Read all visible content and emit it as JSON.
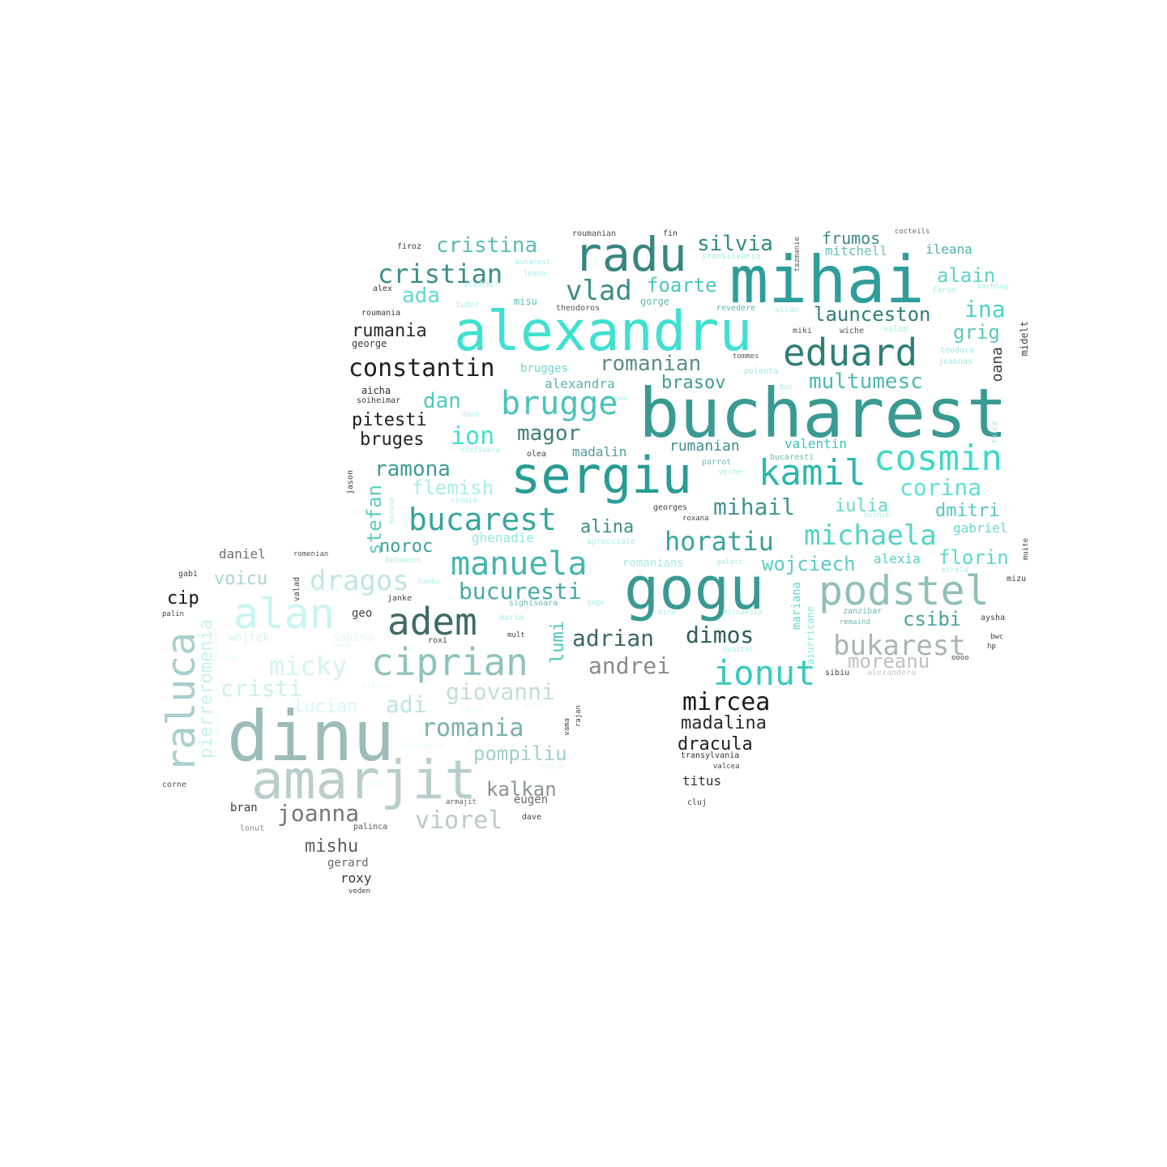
{
  "words": [
    {
      "text": "bucharest",
      "color": "#3a9a92"
    },
    {
      "text": "mihai",
      "color": "#2f9d9a"
    },
    {
      "text": "alexandru",
      "color": "#40e0d0"
    },
    {
      "text": "sergiu",
      "color": "#2a9c96"
    },
    {
      "text": "gogu",
      "color": "#3a9a92"
    },
    {
      "text": "dinu",
      "color": "#9dbcb9"
    },
    {
      "text": "amarjit",
      "color": "#b9cdcb"
    },
    {
      "text": "radu",
      "color": "#37867f"
    },
    {
      "text": "alan",
      "color": "#c8f5f1"
    },
    {
      "text": "adem",
      "color": "#3f6b68"
    },
    {
      "text": "ciprian",
      "color": "#8fc3bd"
    },
    {
      "text": "podstel",
      "color": "#8fbfb9"
    },
    {
      "text": "eduard",
      "color": "#2f7e78"
    },
    {
      "text": "kamil",
      "color": "#2fb7ad"
    },
    {
      "text": "cosmin",
      "color": "#40d9c9"
    },
    {
      "text": "ionut",
      "color": "#3ac8be"
    },
    {
      "text": "manuela",
      "color": "#45b5ad"
    },
    {
      "text": "brugge",
      "color": "#4cc3ba"
    },
    {
      "text": "bucarest",
      "color": "#37a59c"
    },
    {
      "text": "raluca",
      "color": "#a8cfcb"
    },
    {
      "text": "michaela",
      "color": "#55d2c6"
    },
    {
      "text": "constantin",
      "color": "#1f1f1f"
    },
    {
      "text": "cristian",
      "color": "#3b8f8a"
    },
    {
      "text": "horatiu",
      "color": "#3aa39a"
    },
    {
      "text": "vlad",
      "color": "#3b8e87"
    },
    {
      "text": "bukarest",
      "color": "#a9b4b3"
    },
    {
      "text": "mircea",
      "color": "#1a1a1a"
    },
    {
      "text": "dragos",
      "color": "#bfe6e1"
    },
    {
      "text": "micky",
      "color": "#d3f3f0"
    },
    {
      "text": "romania",
      "color": "#7bb0aa"
    },
    {
      "text": "cristina",
      "color": "#58bdb3"
    },
    {
      "text": "silvia",
      "color": "#2f8a84"
    },
    {
      "text": "multumesc",
      "color": "#4db9af"
    },
    {
      "text": "romanian",
      "color": "#5b8d88"
    },
    {
      "text": "launceston",
      "color": "#2f7e78"
    },
    {
      "text": "viorel",
      "color": "#bdc9c8"
    },
    {
      "text": "giovanni",
      "color": "#c3dcd8"
    },
    {
      "text": "andrei",
      "color": "#8a8a8a"
    },
    {
      "text": "cristi",
      "color": "#ccf0ec"
    },
    {
      "text": "joanna",
      "color": "#777777"
    },
    {
      "text": "bucuresti",
      "color": "#46aaa2"
    },
    {
      "text": "adrian",
      "color": "#3d6663"
    },
    {
      "text": "dimos",
      "color": "#2e5e5a"
    },
    {
      "text": "moreanu",
      "color": "#c0c0c0"
    },
    {
      "text": "ramona",
      "color": "#3a9e96"
    },
    {
      "text": "corina",
      "color": "#5fe0d2"
    },
    {
      "text": "mihail",
      "color": "#41958e"
    },
    {
      "text": "wojciech",
      "color": "#58cdc2"
    },
    {
      "text": "florin",
      "color": "#5dd7ca"
    },
    {
      "text": "pompiliu",
      "color": "#a0cec8"
    },
    {
      "text": "kalkan",
      "color": "#8a9391"
    },
    {
      "text": "madalina",
      "color": "#2b2b2b"
    },
    {
      "text": "dracula",
      "color": "#202020"
    },
    {
      "text": "flemish",
      "color": "#a8efe7"
    },
    {
      "text": "foarte",
      "color": "#4cc6ba"
    },
    {
      "text": "ada",
      "color": "#5bdccf"
    },
    {
      "text": "ina",
      "color": "#4dd1c4"
    },
    {
      "text": "alain",
      "color": "#5ed3c7"
    },
    {
      "text": "grig",
      "color": "#59c7bc"
    },
    {
      "text": "dmitri",
      "color": "#53c8bd"
    },
    {
      "text": "iulia",
      "color": "#67d6ca"
    },
    {
      "text": "csibi",
      "color": "#49a39c"
    },
    {
      "text": "ion",
      "color": "#40e0d0"
    },
    {
      "text": "magor",
      "color": "#3f7d78"
    },
    {
      "text": "dan",
      "color": "#4fcabe"
    },
    {
      "text": "pitesti",
      "color": "#1d1d1d"
    },
    {
      "text": "bruges",
      "color": "#252525"
    },
    {
      "text": "rumania",
      "color": "#2a2a2a"
    },
    {
      "text": "brasov",
      "color": "#3d9c95"
    },
    {
      "text": "alina",
      "color": "#3d8e88"
    },
    {
      "text": "noroc",
      "color": "#3da199"
    },
    {
      "text": "voicu",
      "color": "#a9d5d0"
    },
    {
      "text": "adi",
      "color": "#bde5e0"
    },
    {
      "text": "lucian",
      "color": "#d4f7f3"
    },
    {
      "text": "stefan",
      "color": "#5ecbc0"
    },
    {
      "text": "lumi",
      "color": "#4cc7bb"
    },
    {
      "text": "frumos",
      "color": "#3c8983"
    },
    {
      "text": "mitchell",
      "color": "#6bbdb5"
    },
    {
      "text": "ileana",
      "color": "#4fb2a9"
    },
    {
      "text": "valentin",
      "color": "#40c2b7"
    },
    {
      "text": "rumanian",
      "color": "#3b918a"
    },
    {
      "text": "madalin",
      "color": "#4c9c95"
    },
    {
      "text": "alexandra",
      "color": "#5bb5ac"
    },
    {
      "text": "gabriel",
      "color": "#6ad9cd"
    },
    {
      "text": "alexia",
      "color": "#54cfc3"
    },
    {
      "text": "ghenadie",
      "color": "#8fe9df"
    },
    {
      "text": "mishu",
      "color": "#5e5e5e"
    },
    {
      "text": "pierreromenia",
      "color": "#c6f1ec"
    },
    {
      "text": "daniel",
      "color": "#6f6f6f"
    },
    {
      "text": "cip",
      "color": "#151515"
    },
    {
      "text": "titus",
      "color": "#303030"
    },
    {
      "text": "oana",
      "color": "#3a3a3a"
    },
    {
      "text": "eugen",
      "color": "#6a6a6a"
    },
    {
      "text": "gerard",
      "color": "#666666"
    },
    {
      "text": "roxy",
      "color": "#3b3b3b"
    },
    {
      "text": "bran",
      "color": "#3a3a3a"
    },
    {
      "text": "geo",
      "color": "#404040"
    },
    {
      "text": "wojtek",
      "color": "#d8f4f0"
    },
    {
      "text": "sabina",
      "color": "#e4f7f5"
    },
    {
      "text": "romanians",
      "color": "#a7e9e2"
    },
    {
      "text": "mariana",
      "color": "#65d9cd"
    },
    {
      "text": "raiurricane",
      "color": "#8ce5db"
    },
    {
      "text": "jason",
      "color": "#404040"
    },
    {
      "text": "roumanian",
      "color": "#4a4a4a"
    },
    {
      "text": "fin",
      "color": "#3a3a3a"
    },
    {
      "text": "firoz",
      "color": "#3a3a3a"
    },
    {
      "text": "alex",
      "color": "#3a3a3a"
    },
    {
      "text": "roumania",
      "color": "#3a3a3a"
    },
    {
      "text": "george",
      "color": "#3a3a3a"
    },
    {
      "text": "aicha",
      "color": "#2e2e2e"
    },
    {
      "text": "soiheimar",
      "color": "#3a3a3a"
    },
    {
      "text": "buharest",
      "color": "#9aefe6"
    },
    {
      "text": "loana",
      "color": "#9aefe6"
    },
    {
      "text": "wladimir",
      "color": "#a9f1e9"
    },
    {
      "text": "tudor",
      "color": "#a9f1e9"
    },
    {
      "text": "misu",
      "color": "#4fc3b8"
    },
    {
      "text": "theodoros",
      "color": "#555555"
    },
    {
      "text": "gorge",
      "color": "#5fb7ae"
    },
    {
      "text": "transilvania",
      "color": "#9cece3"
    },
    {
      "text": "tazmanie",
      "color": "#555555"
    },
    {
      "text": "cocteils",
      "color": "#666666"
    },
    {
      "text": "faroe",
      "color": "#a6efe7"
    },
    {
      "text": "kuching",
      "color": "#a6efe7"
    },
    {
      "text": "revedere",
      "color": "#5fb3aa"
    },
    {
      "text": "allan",
      "color": "#a6efe7"
    },
    {
      "text": "miki",
      "color": "#555555"
    },
    {
      "text": "wiche",
      "color": "#555555"
    },
    {
      "text": "valen",
      "color": "#a6efe7"
    },
    {
      "text": "teodora",
      "color": "#9ee8df"
    },
    {
      "text": "joannas",
      "color": "#9ee8df"
    },
    {
      "text": "midelt",
      "color": "#444444"
    },
    {
      "text": "tommes",
      "color": "#555555"
    },
    {
      "text": "polenta",
      "color": "#9ee8df"
    },
    {
      "text": "buc",
      "color": "#9ee8df"
    },
    {
      "text": "tuica",
      "color": "#9ee8df"
    },
    {
      "text": "dano",
      "color": "#a6efe7"
    },
    {
      "text": "vou",
      "color": "#a6efe7"
    },
    {
      "text": "timisoara",
      "color": "#a6efe7"
    },
    {
      "text": "olea",
      "color": "#444444"
    },
    {
      "text": "parrot",
      "color": "#6bb9b1"
    },
    {
      "text": "bucaresti",
      "color": "#6bb9b1"
    },
    {
      "text": "veche",
      "color": "#a6efe7"
    },
    {
      "text": "sinaia",
      "color": "#a6efe7"
    },
    {
      "text": "karuna",
      "color": "#a6efe7"
    },
    {
      "text": "georges",
      "color": "#444444"
    },
    {
      "text": "roxana",
      "color": "#444444"
    },
    {
      "text": "hishik",
      "color": "#a6efe7"
    },
    {
      "text": "behemoth",
      "color": "#a6efe7"
    },
    {
      "text": "aprecciate",
      "color": "#a6efe7"
    },
    {
      "text": "galati",
      "color": "#a6efe7"
    },
    {
      "text": "mirela",
      "color": "#a6efe7"
    },
    {
      "text": "muite",
      "color": "#444444"
    },
    {
      "text": "mizu",
      "color": "#444444"
    },
    {
      "text": "hanks",
      "color": "#a6efe7"
    },
    {
      "text": "luminita",
      "color": "#e6f9f7"
    },
    {
      "text": "janke",
      "color": "#444444"
    },
    {
      "text": "sighisoara",
      "color": "#6bb9b1"
    },
    {
      "text": "gogo",
      "color": "#a6efe7"
    },
    {
      "text": "dino",
      "color": "#a6efe7"
    },
    {
      "text": "michaella",
      "color": "#a6efe7"
    },
    {
      "text": "zanzibar",
      "color": "#6bb9b1"
    },
    {
      "text": "remaind",
      "color": "#6bb9b1"
    },
    {
      "text": "aysha",
      "color": "#444444"
    },
    {
      "text": "daria",
      "color": "#a6efe7"
    },
    {
      "text": "mult",
      "color": "#444444"
    },
    {
      "text": "roxi",
      "color": "#444444"
    },
    {
      "text": "neuitat",
      "color": "#a6efe7"
    },
    {
      "text": "bwc",
      "color": "#444444"
    },
    {
      "text": "hp",
      "color": "#444444"
    },
    {
      "text": "oooo",
      "color": "#444444"
    },
    {
      "text": "sibiu",
      "color": "#444444"
    },
    {
      "text": "alexandera",
      "color": "#c8c8c8"
    },
    {
      "text": "victor",
      "color": "#e6f9f7"
    },
    {
      "text": "carol",
      "color": "#e6f9f7"
    },
    {
      "text": "andu",
      "color": "#e6f9f7"
    },
    {
      "text": "vama",
      "color": "#444444"
    },
    {
      "text": "rajan",
      "color": "#444444"
    },
    {
      "text": "alejandra",
      "color": "#e6f9f7"
    },
    {
      "text": "nubian",
      "color": "#e6f9f7"
    },
    {
      "text": "ange",
      "color": "#e6f9f7"
    },
    {
      "text": "armajit",
      "color": "#666666"
    },
    {
      "text": "dave",
      "color": "#444444"
    },
    {
      "text": "lonut",
      "color": "#888888"
    },
    {
      "text": "palinca",
      "color": "#555555"
    },
    {
      "text": "corne",
      "color": "#555555"
    },
    {
      "text": "gabi",
      "color": "#444444"
    },
    {
      "text": "palin",
      "color": "#444444"
    },
    {
      "text": "valad",
      "color": "#444444"
    },
    {
      "text": "romenian",
      "color": "#555555"
    },
    {
      "text": "flamish",
      "color": "#e6f9f7"
    },
    {
      "text": "ruxy",
      "color": "#e6f9f7"
    },
    {
      "text": "michaela",
      "color": "#e6f9f7"
    },
    {
      "text": "transylvania",
      "color": "#333333"
    },
    {
      "text": "valcea",
      "color": "#444444"
    },
    {
      "text": "cluj",
      "color": "#444444"
    },
    {
      "text": "veden",
      "color": "#444444"
    },
    {
      "text": "muka",
      "color": "#e6f9f7"
    },
    {
      "text": "brugges",
      "color": "#6bd7cb"
    }
  ]
}
